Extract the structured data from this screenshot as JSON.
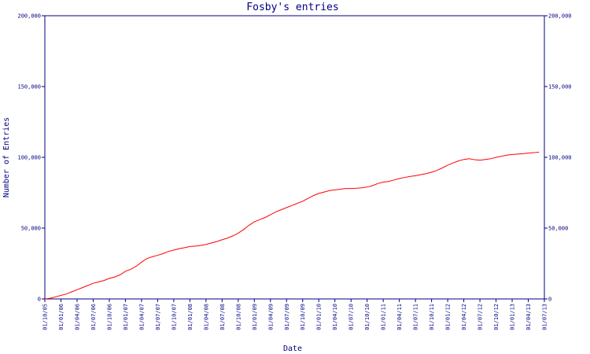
{
  "chart_data": {
    "type": "line",
    "title": "Fosby's entries",
    "xlabel": "Date",
    "ylabel": "Number of Entries",
    "ylim": [
      0,
      200000
    ],
    "yticks": [
      0,
      50000,
      100000,
      150000,
      200000
    ],
    "ytick_labels": [
      "0",
      "50,000",
      "100,000",
      "150,000",
      "200,000"
    ],
    "right_axis": true,
    "grid": false,
    "line_color": "#ff0000",
    "axis_color": "#000080",
    "x_tick_labels": [
      "01/10/05",
      "01/01/06",
      "01/04/06",
      "01/07/06",
      "01/10/06",
      "01/01/07",
      "01/04/07",
      "01/07/07",
      "01/10/07",
      "01/01/08",
      "01/04/08",
      "01/07/08",
      "01/10/08",
      "01/01/09",
      "01/04/09",
      "01/07/09",
      "01/10/09",
      "01/01/10",
      "01/04/10",
      "01/07/10",
      "01/10/10",
      "01/01/11",
      "01/04/11",
      "01/07/11",
      "01/10/11",
      "01/01/12",
      "01/04/12",
      "01/07/12",
      "01/10/12",
      "01/01/13",
      "01/04/13",
      "01/07/13"
    ],
    "series": [
      {
        "x": [
          "01/10/05",
          "01/11/05",
          "01/12/05",
          "01/01/06",
          "01/02/06",
          "01/03/06",
          "01/04/06",
          "01/05/06",
          "01/06/06",
          "01/07/06",
          "01/08/06",
          "01/09/06",
          "01/10/06",
          "01/11/06",
          "01/12/06",
          "01/01/07",
          "01/02/07",
          "01/03/07",
          "01/04/07",
          "01/05/07",
          "01/06/07",
          "01/07/07",
          "01/08/07",
          "01/09/07",
          "01/10/07",
          "01/11/07",
          "01/12/07",
          "01/01/08",
          "01/02/08",
          "01/03/08",
          "01/04/08",
          "01/05/08",
          "01/06/08",
          "01/07/08",
          "01/08/08",
          "01/09/08",
          "01/10/08",
          "01/11/08",
          "01/12/08",
          "01/01/09",
          "01/02/09",
          "01/03/09",
          "01/04/09",
          "01/05/09",
          "01/06/09",
          "01/07/09",
          "01/08/09",
          "01/09/09",
          "01/10/09",
          "01/11/09",
          "01/12/09",
          "01/01/10",
          "01/02/10",
          "01/03/10",
          "01/04/10",
          "01/05/10",
          "01/06/10",
          "01/07/10",
          "01/08/10",
          "01/09/10",
          "01/10/10",
          "01/11/10",
          "01/12/10",
          "01/01/11",
          "01/02/11",
          "01/03/11",
          "01/04/11",
          "01/05/11",
          "01/06/11",
          "01/07/11",
          "01/08/11",
          "01/09/11",
          "01/10/11",
          "01/11/11",
          "01/12/11",
          "01/01/12",
          "01/02/12",
          "01/03/12",
          "01/04/12",
          "01/05/12",
          "01/06/12",
          "01/07/12",
          "01/08/12",
          "01/09/12",
          "01/10/12",
          "01/11/12",
          "01/12/12",
          "01/01/13",
          "01/02/13",
          "01/03/13",
          "01/04/13",
          "01/05/13",
          "01/06/13"
        ],
        "values": [
          0,
          500,
          1500,
          2500,
          3500,
          5000,
          6500,
          8000,
          9500,
          11000,
          12000,
          13000,
          14500,
          15500,
          17000,
          19500,
          21000,
          23000,
          26000,
          28500,
          29800,
          30800,
          32000,
          33500,
          34500,
          35500,
          36200,
          37000,
          37300,
          37800,
          38500,
          39500,
          40500,
          41800,
          43000,
          44500,
          46500,
          49000,
          52000,
          54500,
          56000,
          57500,
          59500,
          61500,
          63000,
          64500,
          66000,
          67500,
          69000,
          71000,
          73000,
          74500,
          75500,
          76500,
          77000,
          77500,
          78000,
          78000,
          78200,
          78500,
          79000,
          80000,
          81500,
          82500,
          83000,
          84000,
          85000,
          85800,
          86500,
          87000,
          87800,
          88500,
          89500,
          90800,
          92500,
          94500,
          96000,
          97500,
          98500,
          99000,
          98300,
          98000,
          98500,
          99000,
          100000,
          100800,
          101500,
          102000,
          102300,
          102600,
          103000,
          103300,
          103700
        ]
      }
    ]
  }
}
